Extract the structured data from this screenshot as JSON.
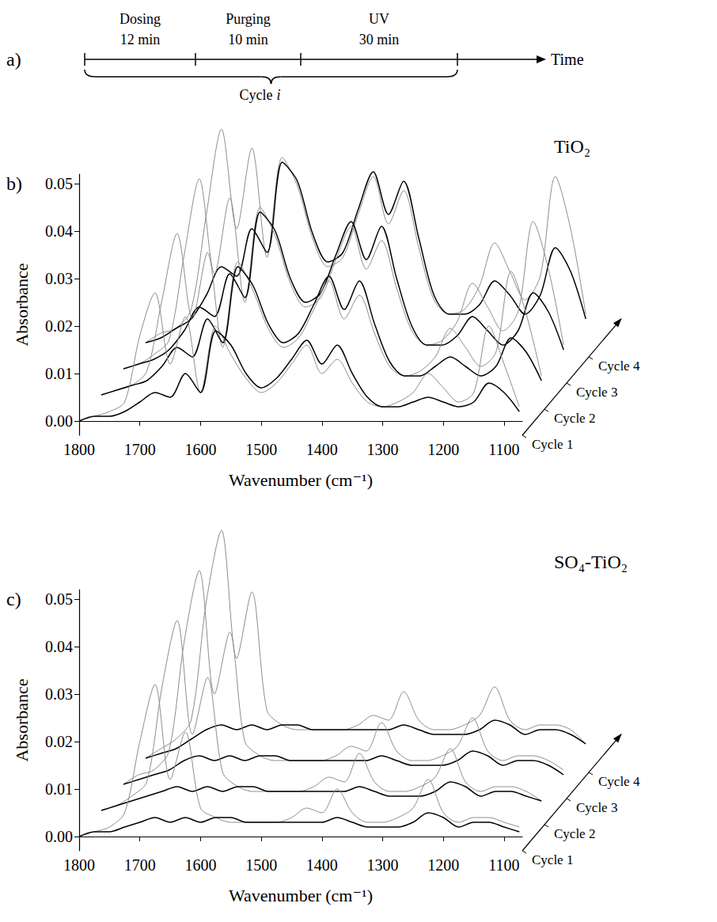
{
  "timeline": {
    "label": "a)",
    "phases": [
      {
        "name": "Dosing",
        "duration": "12 min"
      },
      {
        "name": "Purging",
        "duration": "10 min"
      },
      {
        "name": "UV",
        "duration": "30 min"
      }
    ],
    "axis_label": "Time",
    "cycle_label": "Cycle i"
  },
  "chart_data": [
    {
      "type": "line",
      "label": "b)",
      "title": "TiO₂",
      "x_label": "Wavenumber (cm⁻¹)",
      "y_label": "Absorbance",
      "xlim": [
        1800,
        1070
      ],
      "ylim": [
        -0.003,
        0.052
      ],
      "xticks": [
        1800,
        1700,
        1600,
        1500,
        1400,
        1300,
        1200,
        1100
      ],
      "yticks": [
        {
          "value": 0,
          "label": "0.00"
        },
        {
          "value": 0.01,
          "label": "0.01"
        },
        {
          "value": 0.02,
          "label": "0.02"
        },
        {
          "value": 0.03,
          "label": "0.03"
        },
        {
          "value": 0.04,
          "label": "0.04"
        },
        {
          "value": 0.05,
          "label": "0.05"
        }
      ],
      "grid": false,
      "x": [
        1800,
        1775,
        1750,
        1725,
        1700,
        1675,
        1650,
        1625,
        1600,
        1575,
        1550,
        1525,
        1500,
        1475,
        1450,
        1425,
        1400,
        1375,
        1350,
        1325,
        1300,
        1275,
        1250,
        1225,
        1200,
        1175,
        1150,
        1125,
        1100,
        1075
      ],
      "cycles": [
        {
          "name": "Cycle 1",
          "series": [
            {
              "color": "#8c8c8c",
              "values": [
                0,
                0.001,
                0.002,
                0.004,
                0.018,
                0.027,
                0.012,
                0.022,
                0.006,
                0.02,
                0.014,
                0.009,
                0.006,
                0.008,
                0.012,
                0.016,
                0.01,
                0.013,
                0.008,
                0.004,
                0.003,
                0.004,
                0.006,
                0.01,
                0.007,
                0.004,
                0.006,
                0.02,
                0.012,
                0.003
              ]
            },
            {
              "color": "#000000",
              "values": [
                0,
                0.001,
                0.001,
                0.002,
                0.004,
                0.006,
                0.005,
                0.01,
                0.006,
                0.019,
                0.016,
                0.01,
                0.007,
                0.009,
                0.013,
                0.017,
                0.012,
                0.016,
                0.01,
                0.005,
                0.003,
                0.003,
                0.004,
                0.005,
                0.004,
                0.003,
                0.004,
                0.008,
                0.006,
                0.002
              ]
            }
          ]
        },
        {
          "name": "Cycle 2",
          "series": [
            {
              "color": "#8c8c8c",
              "values": [
                0,
                0.001,
                0.002,
                0.005,
                0.02,
                0.034,
                0.016,
                0.03,
                0.01,
                0.028,
                0.022,
                0.014,
                0.01,
                0.012,
                0.018,
                0.024,
                0.016,
                0.021,
                0.013,
                0.006,
                0.004,
                0.005,
                0.008,
                0.014,
                0.01,
                0.006,
                0.009,
                0.026,
                0.017,
                0.004
              ]
            },
            {
              "color": "#000000",
              "values": [
                0,
                0.001,
                0.002,
                0.003,
                0.006,
                0.01,
                0.008,
                0.016,
                0.011,
                0.027,
                0.023,
                0.015,
                0.011,
                0.013,
                0.019,
                0.025,
                0.018,
                0.024,
                0.015,
                0.007,
                0.004,
                0.004,
                0.006,
                0.008,
                0.006,
                0.004,
                0.006,
                0.012,
                0.009,
                0.003
              ]
            }
          ]
        },
        {
          "name": "Cycle 3",
          "series": [
            {
              "color": "#8c8c8c",
              "values": [
                0,
                0.001,
                0.003,
                0.006,
                0.024,
                0.04,
                0.02,
                0.036,
                0.014,
                0.034,
                0.028,
                0.018,
                0.013,
                0.015,
                0.023,
                0.03,
                0.021,
                0.027,
                0.017,
                0.008,
                0.005,
                0.006,
                0.01,
                0.018,
                0.013,
                0.008,
                0.012,
                0.031,
                0.021,
                0.005
              ]
            },
            {
              "color": "#000000",
              "values": [
                0,
                0.001,
                0.002,
                0.004,
                0.008,
                0.013,
                0.011,
                0.02,
                0.015,
                0.033,
                0.029,
                0.019,
                0.014,
                0.016,
                0.024,
                0.031,
                0.023,
                0.03,
                0.019,
                0.009,
                0.005,
                0.005,
                0.007,
                0.011,
                0.008,
                0.005,
                0.008,
                0.016,
                0.012,
                0.004
              ]
            }
          ]
        },
        {
          "name": "Cycle 4",
          "series": [
            {
              "color": "#8c8c8c",
              "values": [
                0,
                0.002,
                0.003,
                0.007,
                0.027,
                0.045,
                0.024,
                0.041,
                0.018,
                0.039,
                0.033,
                0.022,
                0.016,
                0.018,
                0.027,
                0.035,
                0.025,
                0.032,
                0.02,
                0.009,
                0.006,
                0.007,
                0.012,
                0.021,
                0.015,
                0.009,
                0.014,
                0.035,
                0.024,
                0.006
              ]
            },
            {
              "color": "#000000",
              "values": [
                0,
                0.001,
                0.003,
                0.005,
                0.01,
                0.016,
                0.014,
                0.024,
                0.019,
                0.038,
                0.034,
                0.023,
                0.017,
                0.019,
                0.028,
                0.036,
                0.027,
                0.034,
                0.022,
                0.01,
                0.006,
                0.006,
                0.008,
                0.013,
                0.01,
                0.006,
                0.01,
                0.02,
                0.015,
                0.005
              ]
            }
          ]
        }
      ]
    },
    {
      "type": "line",
      "label": "c)",
      "title": "SO₄-TiO₂",
      "x_label": "Wavenumber (cm⁻¹)",
      "y_label": "Absorbance",
      "xlim": [
        1800,
        1070
      ],
      "ylim": [
        -0.003,
        0.052
      ],
      "xticks": [
        1800,
        1700,
        1600,
        1500,
        1400,
        1300,
        1200,
        1100
      ],
      "yticks": [
        {
          "value": 0,
          "label": "0.00"
        },
        {
          "value": 0.01,
          "label": "0.01"
        },
        {
          "value": 0.02,
          "label": "0.02"
        },
        {
          "value": 0.03,
          "label": "0.03"
        },
        {
          "value": 0.04,
          "label": "0.04"
        },
        {
          "value": 0.05,
          "label": "0.05"
        }
      ],
      "grid": false,
      "x": [
        1800,
        1775,
        1750,
        1725,
        1700,
        1675,
        1650,
        1625,
        1600,
        1575,
        1550,
        1525,
        1500,
        1475,
        1450,
        1425,
        1400,
        1375,
        1350,
        1325,
        1300,
        1275,
        1250,
        1225,
        1200,
        1175,
        1150,
        1125,
        1100,
        1075
      ],
      "cycles": [
        {
          "name": "Cycle 1",
          "series": [
            {
              "color": "#8c8c8c",
              "values": [
                0,
                0.001,
                0.002,
                0.005,
                0.02,
                0.032,
                0.012,
                0.022,
                0.006,
                0.004,
                0.003,
                0.003,
                0.003,
                0.003,
                0.004,
                0.006,
                0.005,
                0.01,
                0.005,
                0.003,
                0.003,
                0.004,
                0.006,
                0.012,
                0.005,
                0.003,
                0.004,
                0.004,
                0.003,
                0.002
              ]
            },
            {
              "color": "#000000",
              "values": [
                0,
                0.001,
                0.001,
                0.002,
                0.003,
                0.004,
                0.003,
                0.004,
                0.003,
                0.004,
                0.004,
                0.003,
                0.003,
                0.003,
                0.003,
                0.003,
                0.003,
                0.004,
                0.003,
                0.002,
                0.002,
                0.002,
                0.003,
                0.005,
                0.004,
                0.002,
                0.003,
                0.003,
                0.002,
                0.001
              ]
            }
          ]
        },
        {
          "name": "Cycle 2",
          "series": [
            {
              "color": "#8c8c8c",
              "values": [
                0,
                0.001,
                0.003,
                0.006,
                0.026,
                0.04,
                0.016,
                0.028,
                0.008,
                0.005,
                0.004,
                0.004,
                0.004,
                0.004,
                0.005,
                0.007,
                0.006,
                0.012,
                0.006,
                0.004,
                0.004,
                0.005,
                0.007,
                0.013,
                0.006,
                0.004,
                0.005,
                0.005,
                0.004,
                0.002
              ]
            },
            {
              "color": "#000000",
              "values": [
                0,
                0.001,
                0.002,
                0.003,
                0.004,
                0.005,
                0.004,
                0.005,
                0.004,
                0.005,
                0.005,
                0.004,
                0.004,
                0.004,
                0.004,
                0.004,
                0.004,
                0.005,
                0.004,
                0.003,
                0.003,
                0.003,
                0.004,
                0.006,
                0.005,
                0.003,
                0.004,
                0.004,
                0.003,
                0.002
              ]
            }
          ]
        },
        {
          "name": "Cycle 3",
          "series": [
            {
              "color": "#8c8c8c",
              "values": [
                0,
                0.002,
                0.003,
                0.007,
                0.03,
                0.045,
                0.019,
                0.032,
                0.009,
                0.006,
                0.005,
                0.005,
                0.005,
                0.005,
                0.006,
                0.008,
                0.007,
                0.013,
                0.007,
                0.005,
                0.005,
                0.006,
                0.008,
                0.014,
                0.007,
                0.005,
                0.006,
                0.006,
                0.005,
                0.003
              ]
            },
            {
              "color": "#000000",
              "values": [
                0,
                0.001,
                0.002,
                0.003,
                0.005,
                0.006,
                0.005,
                0.006,
                0.005,
                0.006,
                0.006,
                0.005,
                0.005,
                0.005,
                0.005,
                0.005,
                0.005,
                0.006,
                0.005,
                0.004,
                0.004,
                0.004,
                0.005,
                0.007,
                0.006,
                0.004,
                0.005,
                0.005,
                0.004,
                0.002
              ]
            }
          ]
        },
        {
          "name": "Cycle 4",
          "series": [
            {
              "color": "#8c8c8c",
              "values": [
                0,
                0.002,
                0.004,
                0.008,
                0.033,
                0.048,
                0.021,
                0.035,
                0.01,
                0.007,
                0.006,
                0.006,
                0.006,
                0.006,
                0.007,
                0.009,
                0.008,
                0.014,
                0.008,
                0.006,
                0.006,
                0.007,
                0.009,
                0.015,
                0.008,
                0.006,
                0.007,
                0.007,
                0.006,
                0.003
              ]
            },
            {
              "color": "#000000",
              "values": [
                0,
                0.001,
                0.002,
                0.004,
                0.006,
                0.007,
                0.006,
                0.007,
                0.006,
                0.007,
                0.007,
                0.006,
                0.006,
                0.006,
                0.006,
                0.006,
                0.006,
                0.007,
                0.006,
                0.005,
                0.005,
                0.005,
                0.006,
                0.008,
                0.007,
                0.005,
                0.006,
                0.006,
                0.005,
                0.003
              ]
            }
          ]
        }
      ]
    }
  ]
}
